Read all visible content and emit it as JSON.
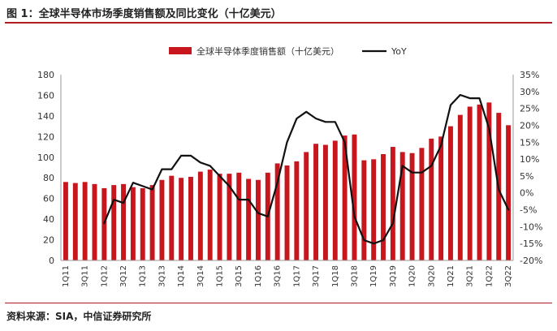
{
  "header": {
    "title": "图 1：全球半导体市场季度销售额及同比变化（十亿美元）"
  },
  "footer": {
    "source": "资料来源：SIA，中信证券研究所"
  },
  "colors": {
    "bar": "#c8161e",
    "line": "#111111",
    "rule": "#b01e23"
  },
  "chart_data": {
    "type": "bar",
    "categories": [
      "1Q11",
      "2Q11",
      "3Q11",
      "4Q11",
      "1Q12",
      "2Q12",
      "3Q12",
      "4Q12",
      "1Q13",
      "2Q13",
      "3Q13",
      "4Q13",
      "1Q14",
      "2Q14",
      "3Q14",
      "4Q14",
      "1Q15",
      "2Q15",
      "3Q15",
      "4Q15",
      "1Q16",
      "2Q16",
      "3Q16",
      "4Q16",
      "1Q17",
      "2Q17",
      "3Q17",
      "4Q17",
      "1Q18",
      "2Q18",
      "3Q18",
      "4Q18",
      "1Q19",
      "2Q19",
      "3Q19",
      "4Q19",
      "1Q20",
      "2Q20",
      "3Q20",
      "4Q20",
      "1Q21",
      "2Q21",
      "3Q21",
      "4Q21",
      "1Q22",
      "2Q22",
      "3Q22"
    ],
    "x_tick_labels": [
      "1Q11",
      "3Q11",
      "1Q12",
      "3Q12",
      "1Q13",
      "3Q13",
      "1Q14",
      "3Q14",
      "1Q15",
      "3Q15",
      "1Q16",
      "3Q16",
      "1Q17",
      "3Q17",
      "1Q18",
      "3Q18",
      "1Q19",
      "3Q19",
      "1Q20",
      "3Q20",
      "1Q21",
      "3Q21",
      "1Q22",
      "3Q22"
    ],
    "series": [
      {
        "name": "全球半导体季度销售额（十亿美元）",
        "type": "bar",
        "axis": "left",
        "values": [
          76,
          75,
          76,
          74,
          70,
          73,
          74,
          71,
          70,
          73,
          78,
          82,
          80,
          81,
          86,
          88,
          84,
          84,
          85,
          79,
          78,
          85,
          94,
          92,
          96,
          105,
          113,
          112,
          116,
          121,
          122,
          97,
          98,
          103,
          110,
          105,
          104,
          109,
          118,
          120,
          130,
          141,
          149,
          151,
          153,
          143,
          131
        ]
      },
      {
        "name": "YoY",
        "type": "line",
        "axis": "right",
        "values": [
          null,
          null,
          null,
          null,
          -9,
          -2,
          -3,
          3,
          2,
          1,
          7,
          7,
          11,
          11,
          9,
          8,
          5,
          2,
          -2,
          -2,
          -6,
          -7,
          3,
          15,
          22,
          24,
          22,
          21,
          21,
          15,
          -7,
          -14,
          -15,
          -14,
          -9,
          8,
          6,
          6,
          8,
          14,
          26,
          29,
          28,
          28,
          19,
          1,
          -5
        ]
      }
    ],
    "ylim_left": [
      0,
      180
    ],
    "ylim_right": [
      -20,
      35
    ],
    "y_ticks_left": [
      "0",
      "20",
      "40",
      "60",
      "80",
      "100",
      "120",
      "140",
      "160",
      "180"
    ],
    "y_ticks_right": [
      "-20%",
      "-15%",
      "-10%",
      "-5%",
      "0%",
      "5%",
      "10%",
      "15%",
      "20%",
      "25%",
      "30%",
      "35%"
    ],
    "legend": {
      "position": "top-center",
      "bar_label": "全球半导体季度销售额（十亿美元）",
      "line_label": "YoY"
    },
    "grid": false
  }
}
